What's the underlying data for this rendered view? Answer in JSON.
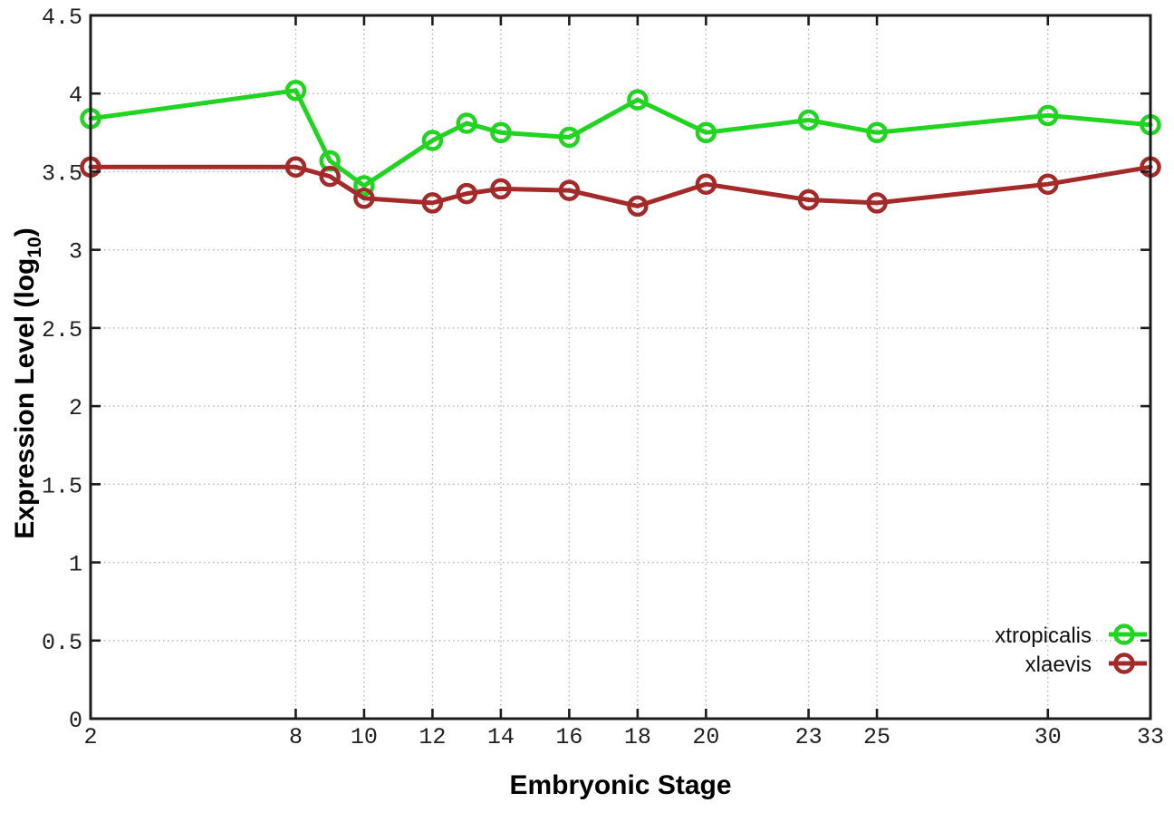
{
  "page": {
    "background": "#ffffff"
  },
  "chart_data": {
    "type": "line",
    "title": "",
    "xlabel": "Embryonic Stage",
    "ylabel": "Expression Level (log10)",
    "ylabel_rich": {
      "main": "Expression Level (log",
      "sub": "10",
      "close": ")"
    },
    "xlim": [
      2,
      33
    ],
    "ylim": [
      0,
      4.5
    ],
    "x_ticks": [
      2,
      8,
      10,
      12,
      14,
      16,
      18,
      20,
      23,
      25,
      30,
      33
    ],
    "x_tick_labels": [
      "2",
      "8",
      "10",
      "12",
      "14",
      "16",
      "18",
      "20",
      "23",
      "25",
      "30",
      "33"
    ],
    "y_ticks": [
      0,
      0.5,
      1,
      1.5,
      2,
      2.5,
      3,
      3.5,
      4,
      4.5
    ],
    "y_tick_labels": [
      "0",
      "0.5",
      "1",
      "1.5",
      "2",
      "2.5",
      "3",
      "3.5",
      "4",
      "4.5"
    ],
    "grid": true,
    "legend_position": "inside-right-bottom",
    "x": [
      2,
      8,
      9,
      10,
      12,
      13,
      14,
      16,
      18,
      20,
      23,
      25,
      30,
      33
    ],
    "series": [
      {
        "name": "xtropicalis",
        "color": "#21d421",
        "values": [
          3.84,
          4.02,
          3.57,
          3.41,
          3.7,
          3.81,
          3.75,
          3.72,
          3.96,
          3.75,
          3.83,
          3.75,
          3.86,
          3.8
        ]
      },
      {
        "name": "xlaevis",
        "color": "#a42a2a",
        "values": [
          3.53,
          3.53,
          3.47,
          3.33,
          3.3,
          3.36,
          3.39,
          3.38,
          3.28,
          3.42,
          3.32,
          3.3,
          3.42,
          3.53
        ]
      }
    ],
    "axis_color": "#1c1c1c",
    "grid_color": "#b5b5b5",
    "tick_label_color": "#1f1f1f"
  }
}
